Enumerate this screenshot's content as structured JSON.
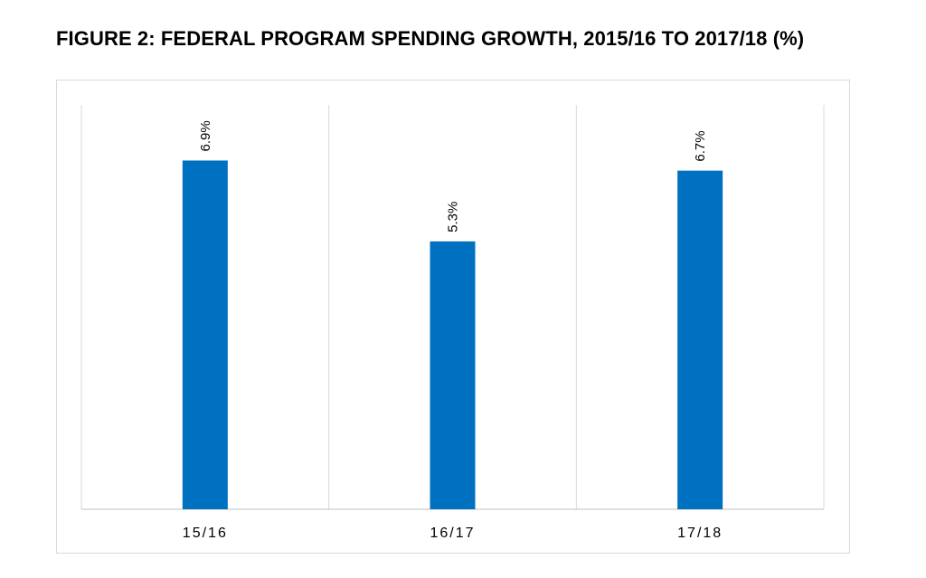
{
  "figure": {
    "title": "FIGURE 2: FEDERAL PROGRAM SPENDING GROWTH, 2015/16 TO 2017/18 (%)"
  },
  "chart_data": {
    "type": "bar",
    "title": "FIGURE 2: FEDERAL PROGRAM SPENDING GROWTH, 2015/16 TO 2017/18 (%)",
    "categories": [
      "15/16",
      "16/17",
      "17/18"
    ],
    "values": [
      6.9,
      5.3,
      6.7
    ],
    "data_labels": [
      "6.9%",
      "5.3%",
      "6.7%"
    ],
    "xlabel": "",
    "ylabel": "",
    "ylim": [
      0,
      8
    ],
    "grid": "vertical category separators",
    "legend": "none",
    "colors": {
      "bar": "#0070c0",
      "grid": "#d9d9d9",
      "axis": "#bfbfbf",
      "text": "#000000"
    }
  }
}
